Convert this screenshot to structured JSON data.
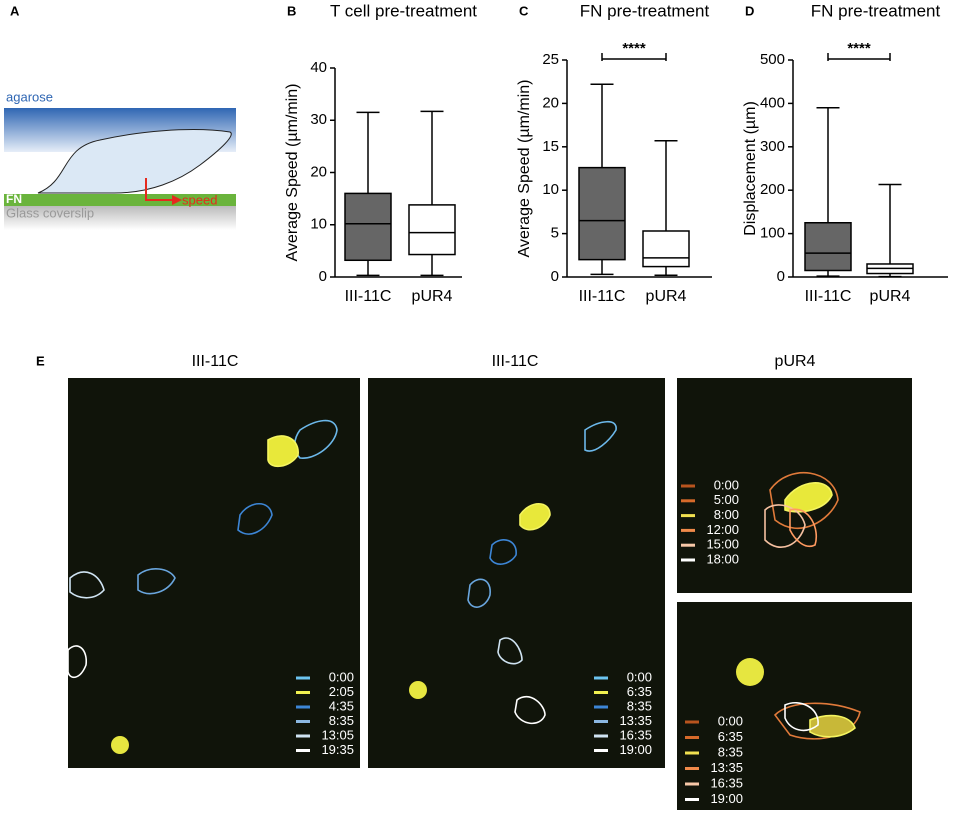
{
  "panel_a": {
    "label": "A",
    "agarose": "agarose",
    "fn": "FN",
    "speed": "speed",
    "glass": "Glass coverslip"
  },
  "chart_data": [
    {
      "type": "box",
      "panel": "B",
      "title": "T cell pre-treatment",
      "ylabel": "Average Speed (µm/min)",
      "categories": [
        "III-11C",
        "pUR4"
      ],
      "ylim": [
        0,
        40
      ],
      "yticks": [
        0,
        10,
        20,
        30,
        40
      ],
      "boxes": [
        {
          "whisker_low": 0.3,
          "q1": 3.2,
          "median": 10.2,
          "q3": 16,
          "whisker_high": 31.5,
          "color": "#666666"
        },
        {
          "whisker_low": 0.3,
          "q1": 4.3,
          "median": 8.5,
          "q3": 13.8,
          "whisker_high": 31.7,
          "color": "#ffffff"
        }
      ]
    },
    {
      "type": "box",
      "panel": "C",
      "title": "FN pre-treatment",
      "ylabel": "Average Speed (µm/min)",
      "categories": [
        "III-11C",
        "pUR4"
      ],
      "ylim": [
        0,
        25
      ],
      "yticks": [
        0,
        5,
        10,
        15,
        20,
        25
      ],
      "significance": "****",
      "boxes": [
        {
          "whisker_low": 0.3,
          "q1": 2,
          "median": 6.5,
          "q3": 12.6,
          "whisker_high": 22.2,
          "color": "#666666"
        },
        {
          "whisker_low": 0.2,
          "q1": 1.2,
          "median": 2.2,
          "q3": 5.3,
          "whisker_high": 15.7,
          "color": "#ffffff"
        }
      ]
    },
    {
      "type": "box",
      "panel": "D",
      "title": "FN pre-treatment",
      "ylabel": "Displacement (µm)",
      "categories": [
        "III-11C",
        "pUR4"
      ],
      "ylim": [
        0,
        500
      ],
      "yticks": [
        0,
        100,
        200,
        300,
        400,
        500
      ],
      "significance": "****",
      "boxes": [
        {
          "whisker_low": 2,
          "q1": 15,
          "median": 55,
          "q3": 125,
          "whisker_high": 390,
          "color": "#666666"
        },
        {
          "whisker_low": 1,
          "q1": 8,
          "median": 20,
          "q3": 30,
          "whisker_high": 213,
          "color": "#ffffff"
        }
      ]
    }
  ],
  "panel_e": {
    "label": "E",
    "titles": [
      "III-11C",
      "III-11C",
      "pUR4"
    ],
    "legends": [
      [
        "0:00",
        "2:05",
        "4:35",
        "8:35",
        "13:05",
        "19:35"
      ],
      [
        "0:00",
        "6:35",
        "8:35",
        "13:35",
        "16:35",
        "19:00"
      ],
      [
        "0:00",
        "5:00",
        "8:00",
        "12:00",
        "15:00",
        "18:00"
      ],
      [
        "0:00",
        "6:35",
        "8:35",
        "13:35",
        "16:35",
        "19:00"
      ]
    ]
  }
}
